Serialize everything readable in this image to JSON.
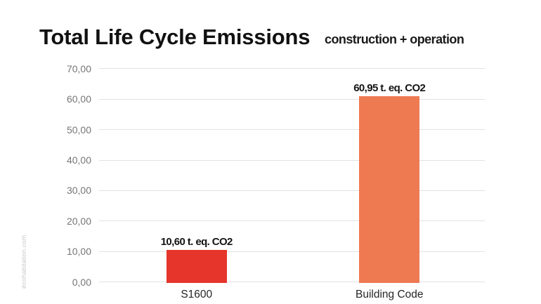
{
  "page": {
    "background": "#ffffff",
    "watermark": "écohabitation.com"
  },
  "header": {
    "title": "Total Life Cycle Emissions",
    "subtitle": "construction + operation"
  },
  "chart_data": {
    "type": "bar",
    "title": "Total Life Cycle Emissions",
    "subtitle": "construction + operation",
    "categories": [
      "S1600",
      "Building Code"
    ],
    "values": [
      10.6,
      60.95
    ],
    "value_labels": [
      "10,60 t. eq. CO2",
      "60,95 t. eq. CO2"
    ],
    "bar_colors": [
      "#e6352b",
      "#ee7a52"
    ],
    "y_ticks": [
      {
        "value": 70,
        "label": "70,00"
      },
      {
        "value": 60,
        "label": "60,00"
      },
      {
        "value": 50,
        "label": "50,00"
      },
      {
        "value": 40,
        "label": "40,00"
      },
      {
        "value": 30,
        "label": "30,00"
      },
      {
        "value": 20,
        "label": "20,00"
      },
      {
        "value": 10,
        "label": "10,00"
      },
      {
        "value": 0,
        "label": "0,00"
      }
    ],
    "ylim": [
      0,
      70
    ],
    "grid": true,
    "legend": "none",
    "xlabel": "",
    "ylabel": ""
  },
  "colors": {
    "grid": "#e2e2e2",
    "tick_label": "#767676",
    "title": "#111111",
    "value_label": "#141414",
    "category_label": "#262626",
    "watermark": "#c8c8c8"
  }
}
